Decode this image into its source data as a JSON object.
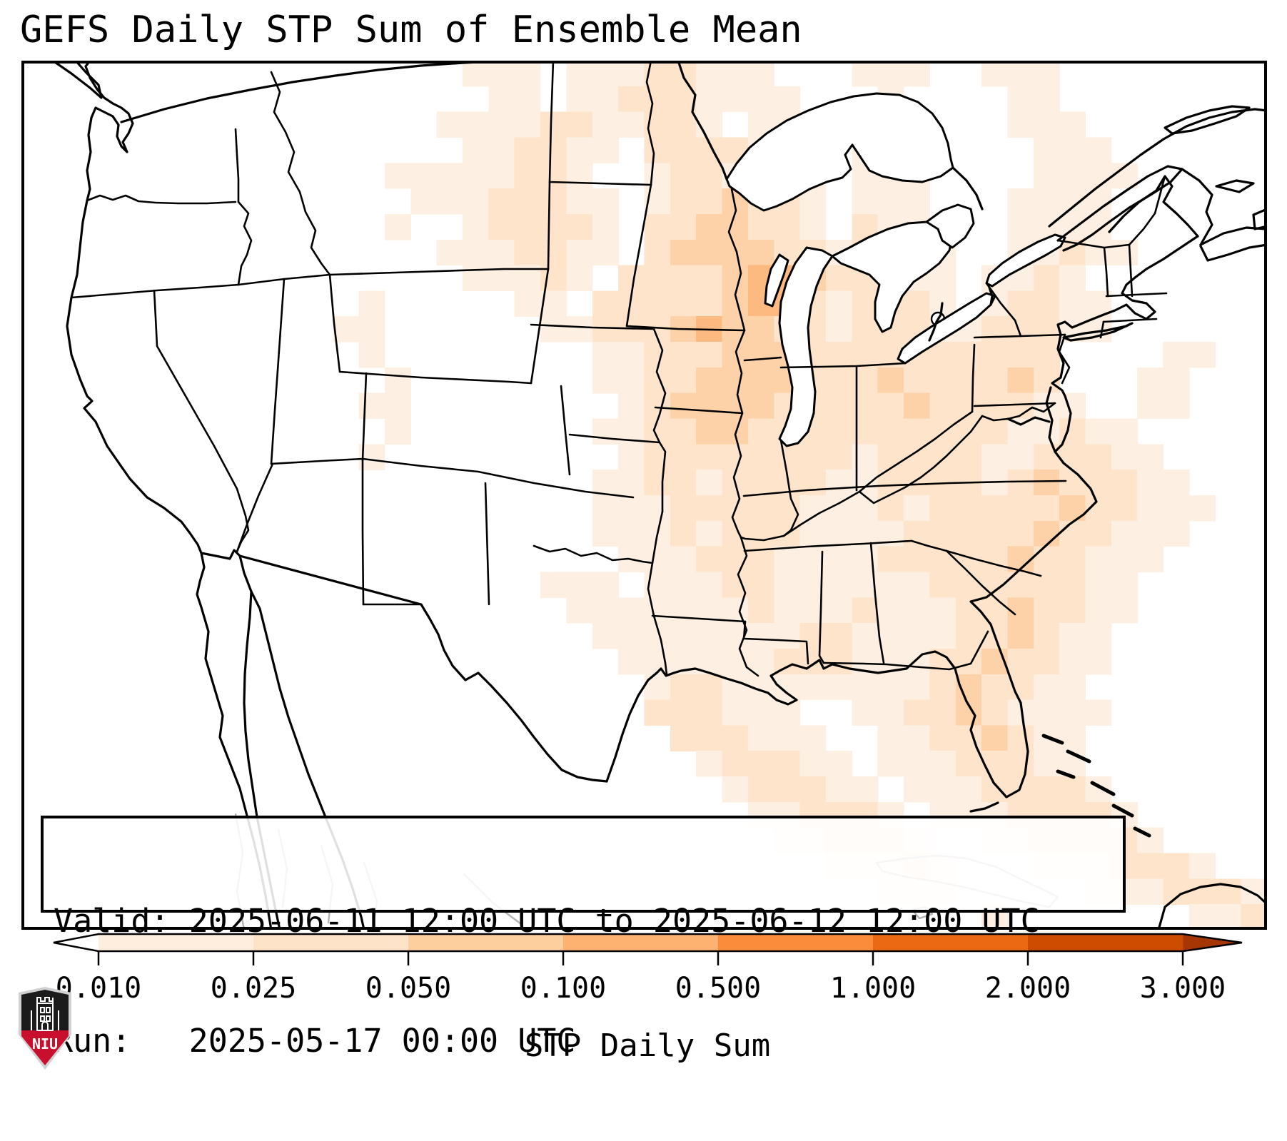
{
  "title": "GEFS Daily STP Sum of Ensemble Mean",
  "info_box": {
    "valid_line": "Valid: 2025-06-11 12:00 UTC to 2025-06-12 12:00 UTC",
    "run_line": "Run:   2025-05-17 00:00 UTC"
  },
  "logo": {
    "text": "NIU",
    "shield_dark": "#1b1b1b",
    "band_red": "#c8102e",
    "border_gray": "#cfd0d2"
  },
  "chart_data": {
    "type": "heatmap",
    "title": "GEFS Daily STP Sum of Ensemble Mean",
    "variable": "STP Daily Sum",
    "valid": "2025-06-11 12:00 UTC to 2025-06-12 12:00 UTC",
    "run": "2025-05-17 00:00 UTC",
    "region": "Continental United States and surrounding waters",
    "colorbar": {
      "label": "STP Daily Sum",
      "orientation": "horizontal",
      "boundaries": [
        0.01,
        0.025,
        0.05,
        0.1,
        0.5,
        1.0,
        2.0,
        3.0
      ],
      "tick_labels": [
        "0.010",
        "0.025",
        "0.050",
        "0.100",
        "0.500",
        "1.000",
        "2.000",
        "3.000"
      ],
      "segment_colors": [
        "#fdeede",
        "#fde3c8",
        "#fdce9e",
        "#fdb271",
        "#fb8c3b",
        "#ec6913",
        "#ce4b02"
      ],
      "under_color": "#ffffff",
      "over_color": "#a63603",
      "outline_color": "#000000"
    },
    "grid": {
      "cols": 48,
      "rows": 34,
      "legend": "digits 0-5: 0 = below 0.010 (white); 1-5 increasing STP daily sum bins",
      "level_colors": {
        "1": "#fdf0e3",
        "2": "#fde4ca",
        "3": "#fdd2a8",
        "4": "#fdba80",
        "5": "#fba55e"
      },
      "rows_data": [
        "000000000000000001110111221110001110011100000000",
        "000000000000000000110112221111000100001100000000",
        "000000000000000011112211221011001110001110000000",
        "000000000000000001122110222211001100000111000000",
        "000000000000001111122100122112101110000111100000",
        "000000000000000111222110122322101110001111000000",
        "000000000000001001222210223322102110001111000000",
        "000000000000000011122110233332212211001121100000",
        "000000000000000001112102222344322211011210000000",
        "000000000000010000011022222344212221012211000000",
        "000000000000110000001122234332212221122211000000",
        "000000000000010000000011222333222222222200001100",
        "000000000000001000000011223333222322223200011000",
        "000000000000011000000001233332222232222110011000",
        "000000000000001000000011223322222222221121100000",
        "000000000000010000000001222222221222211222110000",
        "000000000000000000000011221222211222212322211000",
        "000000000000000000000011122222111212222232211100",
        "000000000000000000000011121222111122222322111000",
        "000000000000000000000001112221111222223221110000",
        "000000000000000000001110111221111112222221100000",
        "000000000000000000000111111121112111223221100000",
        "000000000000000000000011111111221111223211000000",
        "000000000000000000000001111112221112232211000000",
        "000000000000000000000000122111111112322110000000",
        "000000000000000000000000222111001122321111000000",
        "000000000000000000000000022211100112232110000000",
        "000000000000000000000000001222110111222110000000",
        "000000000000000000000000000122211011122221000000",
        "000000000000000000000000000011222101112222100000",
        "000000000000000000000000000001122210011222210000",
        "000000000000000000000000000000011121000111222100",
        "000000000000000000000000000000000111000001112221",
        "000000000000000000000000000000000000010000000112"
      ]
    }
  }
}
